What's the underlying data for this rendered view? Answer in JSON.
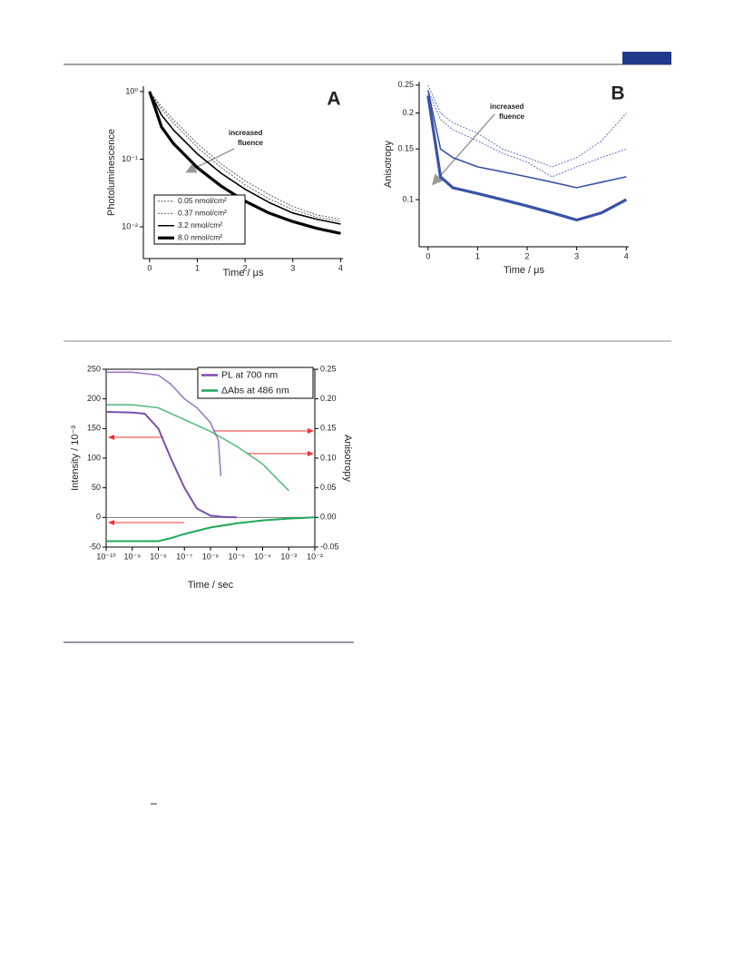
{
  "chart_data": [
    {
      "type": "line",
      "panel": "A",
      "ylabel": "Photoluminescence",
      "xlabel": "Time / μs",
      "annotation": [
        "increased",
        "fluence"
      ],
      "xlim": [
        -0.13,
        4.05
      ],
      "xticks": [
        0,
        1,
        2,
        3,
        4
      ],
      "ylim": [
        0.0034,
        1.2
      ],
      "ylog": true,
      "yticks": [
        {
          "value": 1,
          "label": "10⁰"
        },
        {
          "value": 0.1,
          "label": "10⁻¹"
        },
        {
          "value": 0.01,
          "label": "10⁻²"
        }
      ],
      "x": [
        0,
        0.25,
        0.5,
        1,
        1.5,
        2,
        2.5,
        3,
        3.5,
        4
      ],
      "series": [
        {
          "name": "0.05 nmol/cm²",
          "color": "#555555",
          "line_style": "dotted",
          "values": [
            1,
            0.6,
            0.38,
            0.17,
            0.085,
            0.048,
            0.03,
            0.02,
            0.015,
            0.013
          ]
        },
        {
          "name": "0.37 nmol/cm²",
          "color": "#555555",
          "line_style": "dotted",
          "values": [
            1,
            0.55,
            0.34,
            0.15,
            0.075,
            0.042,
            0.026,
            0.018,
            0.014,
            0.012
          ]
        },
        {
          "name": "3.2 nmol/cm²",
          "color": "#000000",
          "line_style": "solid",
          "values": [
            1,
            0.45,
            0.27,
            0.12,
            0.062,
            0.036,
            0.023,
            0.016,
            0.013,
            0.011
          ]
        },
        {
          "name": "8.0 nmol/cm²",
          "color": "#000000",
          "line_style": "bold",
          "values": [
            1,
            0.3,
            0.17,
            0.075,
            0.04,
            0.024,
            0.016,
            0.012,
            0.0095,
            0.008
          ]
        }
      ]
    },
    {
      "type": "line",
      "panel": "B",
      "ylabel": "Anisotropy",
      "xlabel": "Time / μs",
      "annotation": [
        "increased",
        "fluence"
      ],
      "xlim": [
        -0.18,
        4.05
      ],
      "xticks": [
        0,
        1,
        2,
        3,
        4
      ],
      "ylim": [
        0.0686,
        0.257
      ],
      "ylog": true,
      "yticks": [
        0.1,
        0.15,
        0.2,
        0.25
      ],
      "x": [
        0,
        0.25,
        0.5,
        1,
        1.5,
        2,
        2.5,
        3,
        3.5,
        4
      ],
      "series": [
        {
          "color": "#5566c0",
          "line_style": "dotted",
          "values": [
            0.25,
            0.2,
            0.185,
            0.17,
            0.15,
            0.14,
            0.13,
            0.14,
            0.16,
            0.2
          ]
        },
        {
          "color": "#5566c0",
          "line_style": "dotted",
          "values": [
            0.24,
            0.19,
            0.175,
            0.16,
            0.145,
            0.135,
            0.12,
            0.13,
            0.14,
            0.15
          ]
        },
        {
          "color": "#3a52a8",
          "line_style": "solid",
          "values": [
            0.24,
            0.15,
            0.14,
            0.13,
            0.125,
            0.12,
            0.115,
            0.11,
            0.115,
            0.12
          ]
        },
        {
          "color": "#3a52a8",
          "line_style": "bold",
          "values": [
            0.23,
            0.12,
            0.11,
            0.105,
            0.1,
            0.095,
            0.09,
            0.085,
            0.09,
            0.1
          ]
        }
      ]
    },
    {
      "type": "line",
      "ylabel": "Intensity / 10⁻³",
      "y2label": "Anisotropy",
      "xlabel": "Time / sec",
      "xlim": [
        1e-10,
        0.01
      ],
      "xlog": true,
      "xticks": [
        {
          "value": 1e-10,
          "label": "10⁻¹⁰"
        },
        {
          "value": 1e-09,
          "label": "10⁻⁹"
        },
        {
          "value": 1e-08,
          "label": "10⁻⁸"
        },
        {
          "value": 1e-07,
          "label": "10⁻⁷"
        },
        {
          "value": 1e-06,
          "label": "10⁻⁶"
        },
        {
          "value": 1e-05,
          "label": "10⁻⁵"
        },
        {
          "value": 0.0001,
          "label": "10⁻⁴"
        },
        {
          "value": 0.001,
          "label": "10⁻³"
        },
        {
          "value": 0.01,
          "label": "10⁻²"
        }
      ],
      "ylim": [
        -50,
        250
      ],
      "yticks": [
        -50,
        0,
        50,
        100,
        150,
        200,
        250
      ],
      "y2lim": [
        -0.05,
        0.25
      ],
      "y2ticks": [
        -0.05,
        {
          "value": 0,
          "label": "0.00"
        },
        0.05,
        {
          "value": 0.1,
          "label": "0.10"
        },
        0.15,
        {
          "value": 0.2,
          "label": "0.20"
        },
        0.25
      ],
      "series": [
        {
          "name": "PL at 700 nm",
          "color": "#7a4fb0",
          "intensity": {
            "x": [
              1e-10,
              1e-09,
              3e-09,
              1e-08,
              3e-08,
              1e-07,
              3e-07,
              1e-06,
              3e-06,
              1e-05
            ],
            "values": [
              178,
              177,
              175,
              150,
              100,
              50,
              15,
              3,
              1,
              0
            ]
          },
          "anisotropy": {
            "x": [
              1e-10,
              1e-09,
              1e-08,
              3e-08,
              1e-07,
              3e-07,
              1e-06,
              2e-06,
              2.5e-06
            ],
            "values": [
              0.245,
              0.245,
              0.24,
              0.225,
              0.2,
              0.185,
              0.16,
              0.13,
              0.07
            ]
          }
        },
        {
          "name": "ΔAbs at 486 nm",
          "color": "#1fa85a",
          "intensity": {
            "x": [
              1e-10,
              1e-09,
              1e-08,
              3e-08,
              1e-07,
              1e-06,
              1e-05,
              0.0001,
              0.001,
              0.01
            ],
            "values": [
              -40,
              -40,
              -40,
              -35,
              -28,
              -17,
              -10,
              -5,
              -2,
              0
            ]
          },
          "anisotropy": {
            "x": [
              1e-10,
              1e-09,
              1e-08,
              1e-07,
              1e-06,
              1e-05,
              0.0001,
              0.001
            ],
            "values": [
              0.19,
              0.19,
              0.185,
              0.165,
              0.145,
              0.12,
              0.09,
              0.045
            ]
          }
        }
      ]
    }
  ]
}
